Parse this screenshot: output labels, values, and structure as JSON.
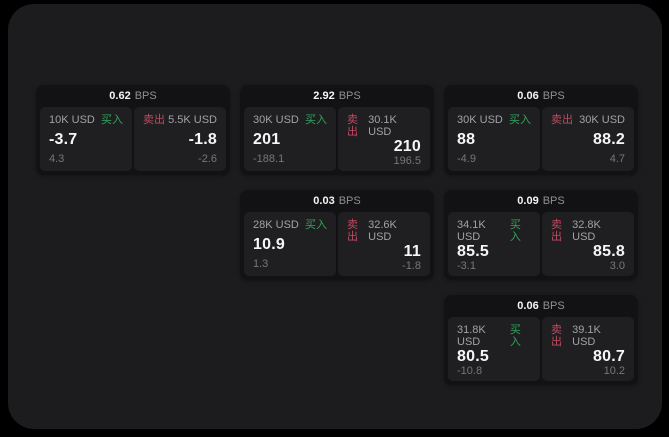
{
  "colors": {
    "page_bg": "#000000",
    "panel_bg": "#1c1c1e",
    "card_bg": "#121214",
    "tile_bg": "#1f1f21",
    "text_primary": "#f6f6f7",
    "text_secondary": "#a2a2a5",
    "text_muted": "#77777a",
    "buy_green": "#33a35d",
    "sell_red": "#c04a60"
  },
  "labels": {
    "buy": "买入",
    "sell": "卖出",
    "bps_unit": "BPS"
  },
  "cards": [
    {
      "bps": "0.62",
      "buy": {
        "amount": "10K USD",
        "price": "-3.7",
        "delta": "4.3"
      },
      "sell": {
        "amount": "5.5K USD",
        "price": "-1.8",
        "delta": "-2.6"
      }
    },
    {
      "bps": "2.92",
      "buy": {
        "amount": "30K USD",
        "price": "201",
        "delta": "-188.1"
      },
      "sell": {
        "amount": "30.1K USD",
        "price": "210",
        "delta": "196.5"
      }
    },
    {
      "bps": "0.06",
      "buy": {
        "amount": "30K USD",
        "price": "88",
        "delta": "-4.9"
      },
      "sell": {
        "amount": "30K USD",
        "price": "88.2",
        "delta": "4.7"
      }
    },
    {
      "bps": "0.03",
      "buy": {
        "amount": "28K USD",
        "price": "10.9",
        "delta": "1.3"
      },
      "sell": {
        "amount": "32.6K USD",
        "price": "11",
        "delta": "-1.8"
      }
    },
    {
      "bps": "0.09",
      "buy": {
        "amount": "34.1K USD",
        "price": "85.5",
        "delta": "-3.1"
      },
      "sell": {
        "amount": "32.8K USD",
        "price": "85.8",
        "delta": "3.0"
      }
    },
    {
      "bps": "0.06",
      "buy": {
        "amount": "31.8K USD",
        "price": "80.5",
        "delta": "-10.8"
      },
      "sell": {
        "amount": "39.1K USD",
        "price": "80.7",
        "delta": "10.2"
      }
    }
  ]
}
